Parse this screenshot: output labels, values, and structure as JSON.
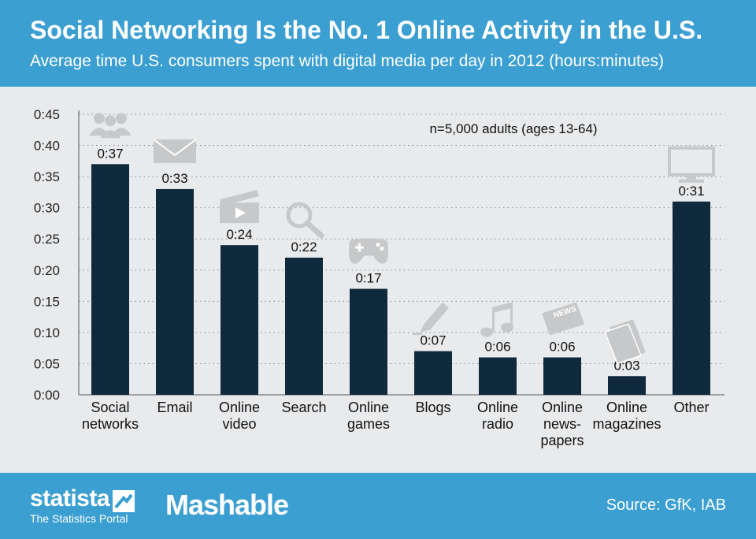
{
  "header": {
    "title": "Social Networking Is the No. 1 Online Activity in the U.S.",
    "subtitle": "Average time U.S. consumers spent with digital media per day in 2012 (hours:minutes)"
  },
  "chart_data": {
    "type": "bar",
    "categories": [
      [
        "Social",
        "networks"
      ],
      [
        "Email"
      ],
      [
        "Online",
        "video"
      ],
      [
        "Search"
      ],
      [
        "Online",
        "games"
      ],
      [
        "Blogs"
      ],
      [
        "Online",
        "radio"
      ],
      [
        "Online",
        "news-",
        "papers"
      ],
      [
        "Online",
        "magazines"
      ],
      [
        "Other"
      ]
    ],
    "values": [
      37,
      33,
      24,
      22,
      17,
      7,
      6,
      6,
      3,
      31
    ],
    "value_labels": [
      "0:37",
      "0:33",
      "0:24",
      "0:22",
      "0:17",
      "0:07",
      "0:06",
      "0:06",
      "0:03",
      "0:31"
    ],
    "icons": [
      "people-icon",
      "envelope-icon",
      "clapperboard-icon",
      "magnifier-icon",
      "gamepad-icon",
      "pencil-icon",
      "music-note-icon",
      "newspaper-icon",
      "magazine-icon",
      "monitor-icon"
    ],
    "icon_text": {
      "newspaper-icon": "NEWS"
    },
    "y_ticks": [
      "0:00",
      "0:05",
      "0:10",
      "0:15",
      "0:20",
      "0:25",
      "0:30",
      "0:35",
      "0:40",
      "0:45"
    ],
    "ylim": [
      0,
      45
    ],
    "grid": true,
    "note": "n=5,000 adults (ages 13-64)",
    "bar_color": "#0f2a3d",
    "icon_color": "#c7c8ca"
  },
  "footer": {
    "statista_name": "statista",
    "statista_tagline": "The Statistics Portal",
    "partner": "Mashable",
    "source": "Source: GfK, IAB"
  },
  "colors": {
    "brand": "#3b9fd1",
    "plot_background": "#e9eaec"
  }
}
